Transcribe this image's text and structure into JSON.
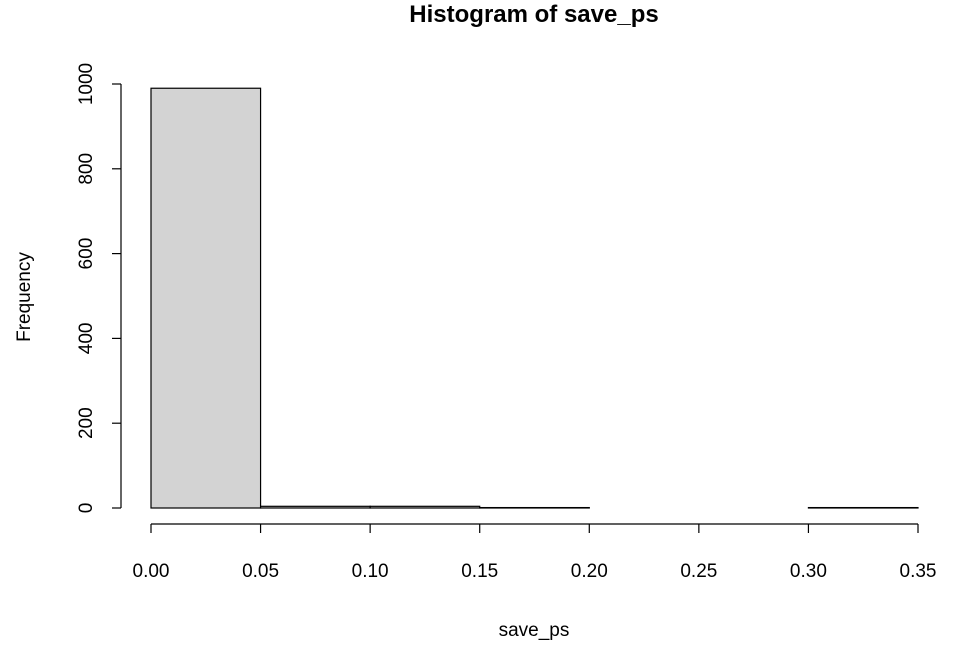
{
  "chart_data": {
    "type": "bar",
    "subtype": "histogram",
    "title": "Histogram of save_ps",
    "xlabel": "save_ps",
    "ylabel": "Frequency",
    "bins": [
      {
        "x0": 0.0,
        "x1": 0.05,
        "count": 990
      },
      {
        "x0": 0.05,
        "x1": 0.1,
        "count": 4
      },
      {
        "x0": 0.1,
        "x1": 0.15,
        "count": 4
      },
      {
        "x0": 0.15,
        "x1": 0.2,
        "count": 1
      },
      {
        "x0": 0.2,
        "x1": 0.25,
        "count": 0
      },
      {
        "x0": 0.25,
        "x1": 0.3,
        "count": 0
      },
      {
        "x0": 0.3,
        "x1": 0.35,
        "count": 1
      }
    ],
    "xlim": [
      0,
      0.35
    ],
    "ylim": [
      0,
      1000
    ],
    "x_ticks": [
      "0.00",
      "0.05",
      "0.10",
      "0.15",
      "0.20",
      "0.25",
      "0.30",
      "0.35"
    ],
    "y_ticks": [
      "0",
      "200",
      "400",
      "600",
      "800",
      "1000"
    ],
    "grid": false,
    "legend": "none",
    "colors": {
      "bar_fill": "#d3d3d3",
      "bar_stroke": "#000000"
    }
  }
}
